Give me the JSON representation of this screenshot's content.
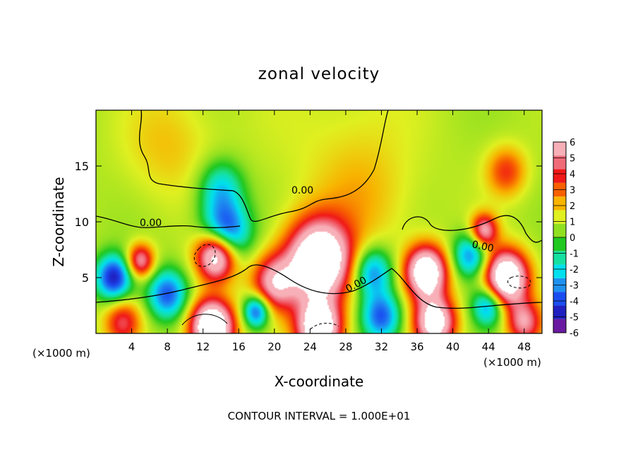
{
  "chart_data": {
    "type": "heatmap",
    "title": "zonal velocity",
    "xlabel": "X-coordinate",
    "ylabel": "Z-coordinate",
    "x_unit_left": "(×1000 m)",
    "x_unit_right": "(×1000 m)",
    "footer": "CONTOUR INTERVAL = 1.000E+01",
    "xlim": [
      0,
      50
    ],
    "ylim": [
      0,
      20
    ],
    "x_ticks": [
      4,
      8,
      12,
      16,
      20,
      24,
      28,
      32,
      36,
      40,
      44,
      48
    ],
    "y_ticks": [
      5,
      10,
      15
    ],
    "colorbar": {
      "range": [
        -6,
        6
      ],
      "levels": [
        -6,
        -5,
        -4,
        -3,
        -2,
        -1,
        0,
        1,
        2,
        3,
        4,
        5,
        6
      ],
      "colors": [
        "#6a1aa0",
        "#2020c0",
        "#1a4df0",
        "#1e90f0",
        "#00e0ee",
        "#16e0a0",
        "#20c820",
        "#90e020",
        "#e0f020",
        "#f8b400",
        "#f86000",
        "#f01818",
        "#f06a78",
        "#f8b0b8"
      ],
      "over_color": "#ffffff",
      "under_color": "#ffffff"
    },
    "contour_labels": [
      "0.00",
      "0.00",
      "0.00",
      "0.00"
    ],
    "blobs": [
      {
        "x": 28,
        "z": 17,
        "v": 0.6,
        "r": 9
      },
      {
        "x": 8,
        "z": 17,
        "v": 1.2,
        "r": 5
      },
      {
        "x": 46,
        "z": 14.5,
        "v": 2.8,
        "r": 2.2
      },
      {
        "x": 30,
        "z": 12,
        "v": 1.0,
        "r": 5
      },
      {
        "x": 14,
        "z": 13,
        "v": -3.0,
        "r": 2.5
      },
      {
        "x": 14.5,
        "z": 9,
        "v": -5.5,
        "r": 2.6
      },
      {
        "x": 13.5,
        "z": 7,
        "v": 8.0,
        "r": 2.2
      },
      {
        "x": 5,
        "z": 6.5,
        "v": 4.8,
        "r": 1.5
      },
      {
        "x": 2,
        "z": 5,
        "v": -5.5,
        "r": 2.0
      },
      {
        "x": 8,
        "z": 3.5,
        "v": -4.5,
        "r": 2.2
      },
      {
        "x": 25,
        "z": 6.5,
        "v": 9.0,
        "r": 3.5
      },
      {
        "x": 20,
        "z": 4.5,
        "v": 5.0,
        "r": 2.5
      },
      {
        "x": 31,
        "z": 5.5,
        "v": -4.0,
        "r": 2.2
      },
      {
        "x": 37,
        "z": 5.5,
        "v": 8.0,
        "r": 2.3
      },
      {
        "x": 43.5,
        "z": 9.2,
        "v": 5.0,
        "r": 1.5
      },
      {
        "x": 46,
        "z": 5,
        "v": 8.5,
        "r": 2.4
      },
      {
        "x": 42,
        "z": 7,
        "v": -4.0,
        "r": 2.0
      },
      {
        "x": 13,
        "z": 0.6,
        "v": 9.0,
        "r": 2.4
      },
      {
        "x": 25,
        "z": 0.5,
        "v": 8.0,
        "r": 2.5
      },
      {
        "x": 32,
        "z": 1.5,
        "v": -4.5,
        "r": 2.2
      },
      {
        "x": 38,
        "z": 1.0,
        "v": 7.0,
        "r": 2.3
      },
      {
        "x": 3,
        "z": 1.0,
        "v": 3.5,
        "r": 2.0
      },
      {
        "x": 48,
        "z": 1.0,
        "v": 4.5,
        "r": 2.0
      },
      {
        "x": 18,
        "z": 2.0,
        "v": -5.0,
        "r": 1.5
      },
      {
        "x": 44,
        "z": 2.5,
        "v": -4.0,
        "r": 1.8
      }
    ]
  }
}
